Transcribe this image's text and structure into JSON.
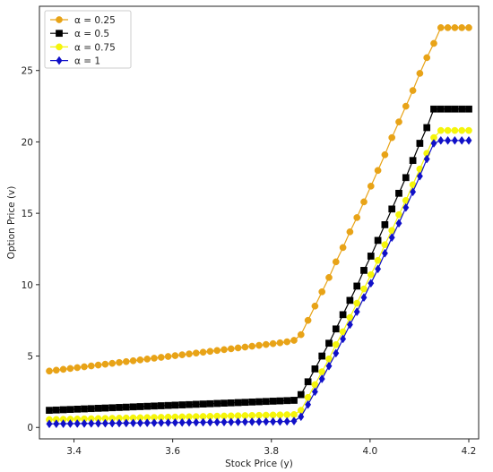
{
  "chart_data": {
    "type": "line",
    "title": "",
    "xlabel": "Stock Price (y)",
    "ylabel": "Option Price (v)",
    "xlim": [
      3.33,
      4.22
    ],
    "ylim": [
      -0.8,
      29.5
    ],
    "xticks": [
      3.4,
      3.6,
      3.8,
      4.0,
      4.2
    ],
    "xtick_labels": [
      "3.4",
      "3.6",
      "3.8",
      "4.0",
      "4.2"
    ],
    "yticks": [
      0,
      5,
      10,
      15,
      20,
      25
    ],
    "ytick_labels": [
      "0",
      "5",
      "10",
      "15",
      "20",
      "25"
    ],
    "grid": false,
    "legend_position": "top-left",
    "x_start": 3.35,
    "x_end": 4.2,
    "n_points": 61,
    "series": [
      {
        "name": "α = 0.25",
        "color": "#e8a317",
        "marker": "circle",
        "values": [
          3.95,
          4.01,
          4.07,
          4.13,
          4.19,
          4.25,
          4.31,
          4.37,
          4.43,
          4.49,
          4.55,
          4.61,
          4.67,
          4.73,
          4.79,
          4.85,
          4.91,
          4.97,
          5.03,
          5.09,
          5.15,
          5.21,
          5.27,
          5.33,
          5.39,
          5.45,
          5.51,
          5.57,
          5.63,
          5.69,
          5.75,
          5.81,
          5.87,
          5.93,
          6.0,
          6.1,
          6.5,
          7.5,
          8.5,
          9.5,
          10.5,
          11.6,
          12.6,
          13.7,
          14.7,
          15.8,
          16.9,
          18.0,
          19.1,
          20.3,
          21.4,
          22.5,
          23.6,
          24.8,
          25.9,
          26.9,
          28.0,
          28.0,
          28.0,
          28.0,
          28.0
        ]
      },
      {
        "name": "α = 0.5",
        "color": "#000000",
        "marker": "square",
        "values": [
          1.2,
          1.22,
          1.24,
          1.26,
          1.28,
          1.3,
          1.32,
          1.34,
          1.36,
          1.38,
          1.4,
          1.42,
          1.44,
          1.46,
          1.48,
          1.5,
          1.52,
          1.54,
          1.56,
          1.58,
          1.6,
          1.62,
          1.64,
          1.66,
          1.68,
          1.7,
          1.72,
          1.74,
          1.76,
          1.78,
          1.8,
          1.82,
          1.84,
          1.86,
          1.88,
          1.9,
          2.3,
          3.2,
          4.1,
          5.0,
          5.9,
          6.9,
          7.9,
          8.9,
          9.9,
          11.0,
          12.0,
          13.1,
          14.2,
          15.3,
          16.4,
          17.5,
          18.7,
          19.9,
          21.0,
          22.3,
          22.3,
          22.3,
          22.3,
          22.3,
          22.3
        ]
      },
      {
        "name": "α = 0.75",
        "color": "#f5f50a",
        "marker": "circle",
        "values": [
          0.55,
          0.56,
          0.57,
          0.58,
          0.59,
          0.6,
          0.61,
          0.62,
          0.63,
          0.64,
          0.65,
          0.66,
          0.67,
          0.68,
          0.69,
          0.7,
          0.71,
          0.72,
          0.73,
          0.74,
          0.75,
          0.76,
          0.77,
          0.78,
          0.79,
          0.8,
          0.81,
          0.82,
          0.83,
          0.84,
          0.85,
          0.86,
          0.87,
          0.88,
          0.89,
          0.9,
          1.2,
          2.1,
          3.0,
          3.9,
          4.8,
          5.8,
          6.7,
          7.7,
          8.7,
          9.7,
          10.7,
          11.7,
          12.8,
          13.8,
          14.9,
          15.9,
          17.0,
          18.1,
          19.2,
          20.3,
          20.8,
          20.8,
          20.8,
          20.8,
          20.8
        ]
      },
      {
        "name": "α = 1",
        "color": "#1010c8",
        "marker": "diamond",
        "values": [
          0.25,
          0.255,
          0.26,
          0.265,
          0.27,
          0.275,
          0.28,
          0.285,
          0.29,
          0.295,
          0.3,
          0.305,
          0.31,
          0.315,
          0.32,
          0.325,
          0.33,
          0.335,
          0.34,
          0.345,
          0.35,
          0.355,
          0.36,
          0.365,
          0.37,
          0.375,
          0.38,
          0.385,
          0.39,
          0.395,
          0.4,
          0.405,
          0.41,
          0.415,
          0.42,
          0.45,
          0.75,
          1.6,
          2.5,
          3.4,
          4.3,
          5.2,
          6.2,
          7.2,
          8.1,
          9.1,
          10.1,
          11.1,
          12.2,
          13.3,
          14.3,
          15.4,
          16.5,
          17.6,
          18.8,
          19.9,
          20.1,
          20.1,
          20.1,
          20.1,
          20.1
        ]
      }
    ]
  }
}
